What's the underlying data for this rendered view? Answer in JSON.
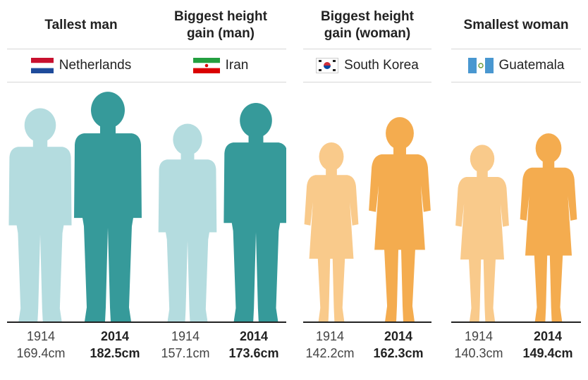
{
  "colors": {
    "man_1914": "#b4dcdf",
    "man_2014": "#369a9a",
    "woman_1914": "#f9ca8b",
    "woman_2014": "#f4ac4f"
  },
  "chart_data": [
    {
      "type": "bar",
      "title": "Tallest man",
      "country": "Netherlands",
      "flag": "netherlands-flag",
      "gender": "man",
      "categories": [
        "1914",
        "2014"
      ],
      "values": [
        169.4,
        182.5
      ],
      "value_labels": [
        "169.4cm",
        "182.5cm"
      ]
    },
    {
      "type": "bar",
      "title": "Biggest height\ngain (man)",
      "country": "Iran",
      "flag": "iran-flag",
      "gender": "man",
      "categories": [
        "1914",
        "2014"
      ],
      "values": [
        157.1,
        173.6
      ],
      "value_labels": [
        "157.1cm",
        "173.6cm"
      ]
    },
    {
      "type": "bar",
      "title": "Biggest height\ngain (woman)",
      "country": "South Korea",
      "flag": "south-korea-flag",
      "gender": "woman",
      "categories": [
        "1914",
        "2014"
      ],
      "values": [
        142.2,
        162.3
      ],
      "value_labels": [
        "142.2cm",
        "162.3cm"
      ]
    },
    {
      "type": "bar",
      "title": "Smallest woman",
      "country": "Guatemala",
      "flag": "guatemala-flag",
      "gender": "woman",
      "categories": [
        "1914",
        "2014"
      ],
      "values": [
        140.3,
        149.4
      ],
      "value_labels": [
        "140.3cm",
        "149.4cm"
      ]
    }
  ]
}
